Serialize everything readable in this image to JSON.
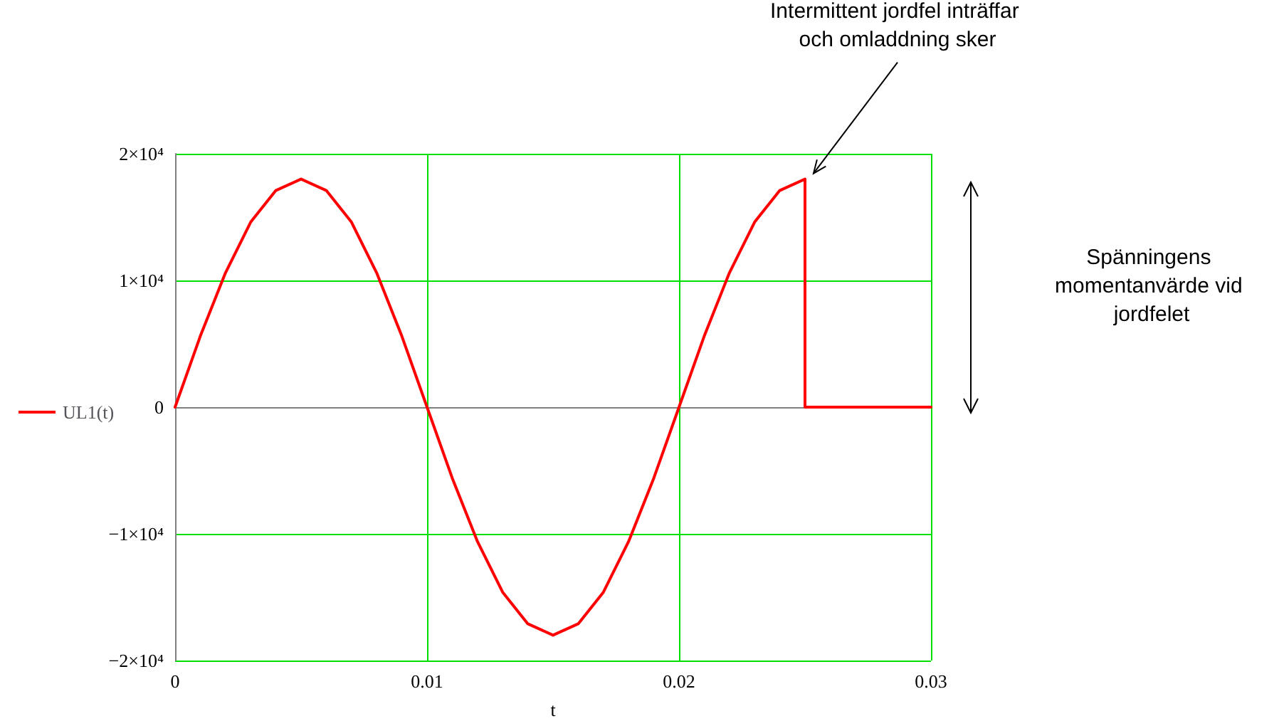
{
  "chart_data": {
    "type": "line",
    "xlabel": "t",
    "x": [
      0,
      0.001,
      0.002,
      0.003,
      0.004,
      0.005,
      0.006,
      0.007,
      0.008,
      0.009,
      0.01,
      0.011,
      0.012,
      0.013,
      0.014,
      0.015,
      0.016,
      0.017,
      0.018,
      0.019,
      0.02,
      0.021,
      0.022,
      0.023,
      0.024,
      0.025,
      0.025,
      0.03
    ],
    "series": [
      {
        "name": "UL1(t)",
        "color": "#ff0000",
        "values": [
          0,
          5600,
          10600,
          14600,
          17100,
          18000,
          17100,
          14600,
          10600,
          5600,
          0,
          -5600,
          -10600,
          -14600,
          -17100,
          -18000,
          -17100,
          -14600,
          -10600,
          -5600,
          0,
          5600,
          10600,
          14600,
          17100,
          18000,
          0,
          0
        ]
      }
    ],
    "xlim": [
      0,
      0.03
    ],
    "xticks": [
      0,
      0.01,
      0.02,
      0.03
    ],
    "ylim": [
      -20000,
      20000
    ],
    "yticks": [
      {
        "value": -20000,
        "label": "−2×10⁴"
      },
      {
        "value": -10000,
        "label": "−1×10⁴"
      },
      0,
      {
        "value": 10000,
        "label": "1×10⁴"
      },
      {
        "value": 20000,
        "label": "2×10⁴"
      }
    ],
    "grid": true,
    "legend": "left",
    "marker": "none",
    "line_style": "solid",
    "annotations": [
      {
        "text": "Intermittent jordfel inträffar och omladdning sker",
        "x": 0.025,
        "y": 18000
      },
      "Spänningens momentanvärde vid jordfelet"
    ]
  }
}
